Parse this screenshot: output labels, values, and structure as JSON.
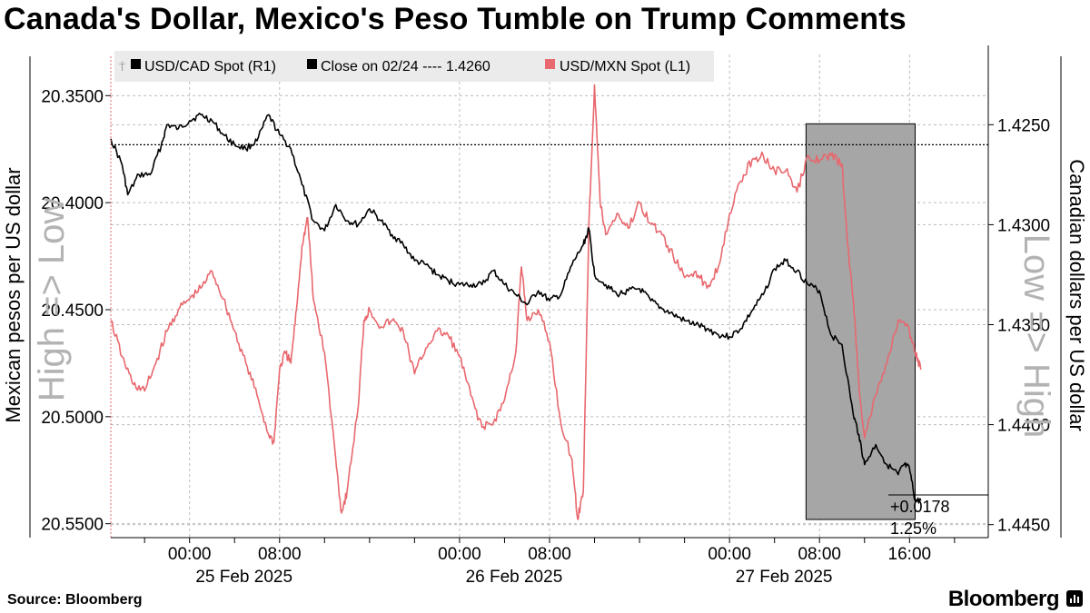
{
  "title": "Canada's Dollar, Mexico's Peso Tumble on Trump Comments",
  "footer": {
    "source": "Source: Bloomberg",
    "brand": "Bloomberg"
  },
  "chart_data": {
    "type": "line",
    "title": "Canada's Dollar, Mexico's Peso Tumble on Trump Comments",
    "x_ticks": [
      {
        "label": "00:00",
        "date": "25 Feb 2025",
        "t": 0
      },
      {
        "label": "08:00",
        "t": 8
      },
      {
        "label": "00:00",
        "date": "26 Feb 2025",
        "t": 24
      },
      {
        "label": "08:00",
        "t": 32
      },
      {
        "label": "00:00",
        "date": "27 Feb 2025",
        "t": 48
      },
      {
        "label": "08:00",
        "t": 56
      },
      {
        "label": "16:00",
        "t": 64
      }
    ],
    "x_range_hours_from_25_Feb_00_00": [
      -7,
      71
    ],
    "left_axis": {
      "label": "Mexican pesos per US dollar",
      "watermark": "High => Low",
      "ticks": [
        "20.3500",
        "20.4000",
        "20.4500",
        "20.5000",
        "20.5500"
      ],
      "ylim": [
        20.3435,
        20.5565
      ],
      "inverted": true
    },
    "right_axis": {
      "label": "Canadian dollars per US dollar",
      "watermark": "Low => High",
      "ticks": [
        "1.4250",
        "1.4300",
        "1.4350",
        "1.4400",
        "1.4450"
      ],
      "ylim": [
        1.42285,
        1.44565
      ],
      "inverted": false
    },
    "legend": {
      "placement": "top-left",
      "items": [
        {
          "label": "USD/CAD Spot (R1)",
          "color": "#000000"
        },
        {
          "label": "Close on 02/24 ---- 1.4260",
          "color": "#000000"
        },
        {
          "label": "USD/MXN Spot (L1)",
          "color": "#e8686e"
        }
      ]
    },
    "reference_line": {
      "label": "Close on 02/24",
      "value": 1.426,
      "axis": "right"
    },
    "highlight_region": {
      "from_hour": 54.8,
      "to_hour": 64.5,
      "color": "#a6a6a6"
    },
    "annotation": {
      "change": "+0.0178",
      "percent": "1.25%",
      "last_value": 1.4438
    },
    "series": [
      {
        "name": "USD/CAD Spot (R1)",
        "axis": "right",
        "color": "#000000",
        "points": [
          [
            -7,
            1.4257
          ],
          [
            -6,
            1.427
          ],
          [
            -5.5,
            1.4285
          ],
          [
            -4.5,
            1.4275
          ],
          [
            -3.5,
            1.4275
          ],
          [
            -2.5,
            1.426
          ],
          [
            -2,
            1.425
          ],
          [
            -1,
            1.4252
          ],
          [
            0,
            1.4248
          ],
          [
            1,
            1.4245
          ],
          [
            2,
            1.4248
          ],
          [
            3,
            1.4255
          ],
          [
            4,
            1.426
          ],
          [
            5,
            1.4262
          ],
          [
            6,
            1.4258
          ],
          [
            7,
            1.4245
          ],
          [
            8,
            1.4255
          ],
          [
            9,
            1.4262
          ],
          [
            10,
            1.428
          ],
          [
            11,
            1.4298
          ],
          [
            12,
            1.4303
          ],
          [
            13,
            1.429
          ],
          [
            14,
            1.4298
          ],
          [
            15,
            1.43
          ],
          [
            16,
            1.4292
          ],
          [
            17,
            1.4298
          ],
          [
            18,
            1.4305
          ],
          [
            19,
            1.431
          ],
          [
            20,
            1.4318
          ],
          [
            21,
            1.432
          ],
          [
            22,
            1.4325
          ],
          [
            23,
            1.4328
          ],
          [
            24,
            1.433
          ],
          [
            25,
            1.433
          ],
          [
            26,
            1.433
          ],
          [
            27,
            1.4323
          ],
          [
            28,
            1.433
          ],
          [
            29,
            1.4335
          ],
          [
            30,
            1.434
          ],
          [
            31,
            1.4333
          ],
          [
            32,
            1.4338
          ],
          [
            33,
            1.4335
          ],
          [
            34,
            1.432
          ],
          [
            35,
            1.431
          ],
          [
            35.5,
            1.4302
          ],
          [
            36,
            1.4325
          ],
          [
            37,
            1.433
          ],
          [
            38,
            1.4335
          ],
          [
            39,
            1.4333
          ],
          [
            40,
            1.4332
          ],
          [
            41,
            1.4338
          ],
          [
            42,
            1.4342
          ],
          [
            43,
            1.4345
          ],
          [
            44,
            1.4348
          ],
          [
            45,
            1.435
          ],
          [
            46,
            1.4352
          ],
          [
            47,
            1.4355
          ],
          [
            48,
            1.4356
          ],
          [
            49,
            1.4352
          ],
          [
            50,
            1.4343
          ],
          [
            51,
            1.4335
          ],
          [
            52,
            1.4322
          ],
          [
            53,
            1.4318
          ],
          [
            54,
            1.4323
          ],
          [
            55,
            1.433
          ],
          [
            56,
            1.4333
          ],
          [
            57,
            1.4355
          ],
          [
            58,
            1.436
          ],
          [
            59,
            1.4395
          ],
          [
            59.5,
            1.4405
          ],
          [
            60,
            1.442
          ],
          [
            61,
            1.441
          ],
          [
            62,
            1.442
          ],
          [
            63,
            1.4425
          ],
          [
            63.5,
            1.442
          ],
          [
            64,
            1.4422
          ],
          [
            64.5,
            1.4438
          ],
          [
            65,
            1.4438
          ]
        ]
      },
      {
        "name": "USD/MXN Spot (L1)",
        "axis": "left",
        "color": "#e8686e",
        "points": [
          [
            -7,
            20.455
          ],
          [
            -6,
            20.472
          ],
          [
            -5,
            20.485
          ],
          [
            -4,
            20.488
          ],
          [
            -3,
            20.475
          ],
          [
            -2,
            20.46
          ],
          [
            -1,
            20.45
          ],
          [
            0,
            20.445
          ],
          [
            1,
            20.44
          ],
          [
            2,
            20.432
          ],
          [
            3,
            20.445
          ],
          [
            4,
            20.46
          ],
          [
            5,
            20.475
          ],
          [
            6,
            20.49
          ],
          [
            7,
            20.508
          ],
          [
            7.5,
            20.512
          ],
          [
            8,
            20.478
          ],
          [
            8.5,
            20.47
          ],
          [
            9,
            20.475
          ],
          [
            9.5,
            20.45
          ],
          [
            10,
            20.42
          ],
          [
            10.5,
            20.407
          ],
          [
            11,
            20.445
          ],
          [
            12,
            20.47
          ],
          [
            13,
            20.52
          ],
          [
            13.5,
            20.545
          ],
          [
            14,
            20.535
          ],
          [
            15,
            20.495
          ],
          [
            15.5,
            20.455
          ],
          [
            16,
            20.45
          ],
          [
            17,
            20.458
          ],
          [
            18,
            20.455
          ],
          [
            19,
            20.46
          ],
          [
            20,
            20.48
          ],
          [
            21,
            20.468
          ],
          [
            22,
            20.46
          ],
          [
            23,
            20.462
          ],
          [
            24,
            20.472
          ],
          [
            25,
            20.49
          ],
          [
            26,
            20.505
          ],
          [
            27,
            20.503
          ],
          [
            28,
            20.492
          ],
          [
            29,
            20.47
          ],
          [
            29.5,
            20.43
          ],
          [
            30,
            20.455
          ],
          [
            31,
            20.45
          ],
          [
            32,
            20.465
          ],
          [
            33,
            20.503
          ],
          [
            34,
            20.52
          ],
          [
            34.5,
            20.548
          ],
          [
            35,
            20.535
          ],
          [
            35.5,
            20.41
          ],
          [
            36,
            20.345
          ],
          [
            36.5,
            20.4
          ],
          [
            37,
            20.415
          ],
          [
            38,
            20.405
          ],
          [
            39,
            20.412
          ],
          [
            40,
            20.4
          ],
          [
            41,
            20.41
          ],
          [
            42,
            20.415
          ],
          [
            43,
            20.425
          ],
          [
            44,
            20.435
          ],
          [
            45,
            20.432
          ],
          [
            46,
            20.44
          ],
          [
            47,
            20.43
          ],
          [
            48,
            20.405
          ],
          [
            49,
            20.39
          ],
          [
            50,
            20.38
          ],
          [
            51,
            20.378
          ],
          [
            52,
            20.385
          ],
          [
            53,
            20.385
          ],
          [
            54,
            20.395
          ],
          [
            55,
            20.378
          ],
          [
            56,
            20.38
          ],
          [
            57,
            20.378
          ],
          [
            58,
            20.382
          ],
          [
            58.5,
            20.42
          ],
          [
            59,
            20.445
          ],
          [
            59.5,
            20.485
          ],
          [
            60,
            20.51
          ],
          [
            61,
            20.49
          ],
          [
            62,
            20.475
          ],
          [
            63,
            20.455
          ],
          [
            64,
            20.46
          ],
          [
            64.5,
            20.47
          ],
          [
            65,
            20.478
          ]
        ]
      }
    ]
  }
}
